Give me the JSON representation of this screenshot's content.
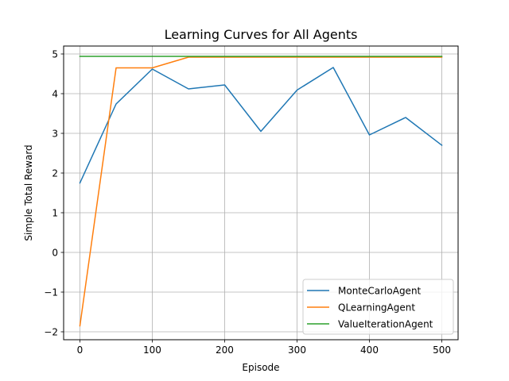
{
  "chart_data": {
    "type": "line",
    "title": "Learning Curves for All Agents",
    "xlabel": "Episode",
    "ylabel": "Simple Total Reward",
    "xlim": [
      -22.5,
      522.5
    ],
    "ylim": [
      -2.2,
      5.2
    ],
    "xticks": [
      0,
      100,
      200,
      300,
      400,
      500
    ],
    "yticks": [
      -2,
      -1,
      0,
      1,
      2,
      3,
      4,
      5
    ],
    "xtick_labels": [
      "0",
      "100",
      "200",
      "300",
      "400",
      "500"
    ],
    "ytick_labels": [
      "−2",
      "−1",
      "0",
      "1",
      "2",
      "3",
      "4",
      "5"
    ],
    "grid": true,
    "legend_position": "lower-right",
    "series": [
      {
        "name": "MonteCarloAgent",
        "color": "#1f77b4",
        "x": [
          0,
          50,
          100,
          150,
          200,
          250,
          300,
          350,
          400,
          450,
          500
        ],
        "y": [
          1.75,
          3.74,
          4.62,
          4.12,
          4.22,
          3.05,
          4.09,
          4.66,
          2.96,
          3.4,
          2.7
        ]
      },
      {
        "name": "QLearningAgent",
        "color": "#ff7f0e",
        "x": [
          0,
          50,
          100,
          150,
          200,
          250,
          300,
          350,
          400,
          450,
          500
        ],
        "y": [
          -1.85,
          4.65,
          4.65,
          4.92,
          4.92,
          4.92,
          4.92,
          4.92,
          4.92,
          4.92,
          4.92
        ]
      },
      {
        "name": "ValueIterationAgent",
        "color": "#2ca02c",
        "x": [
          0,
          50,
          100,
          150,
          200,
          250,
          300,
          350,
          400,
          450,
          500
        ],
        "y": [
          4.94,
          4.94,
          4.94,
          4.94,
          4.94,
          4.94,
          4.94,
          4.94,
          4.94,
          4.94,
          4.94
        ]
      }
    ]
  }
}
